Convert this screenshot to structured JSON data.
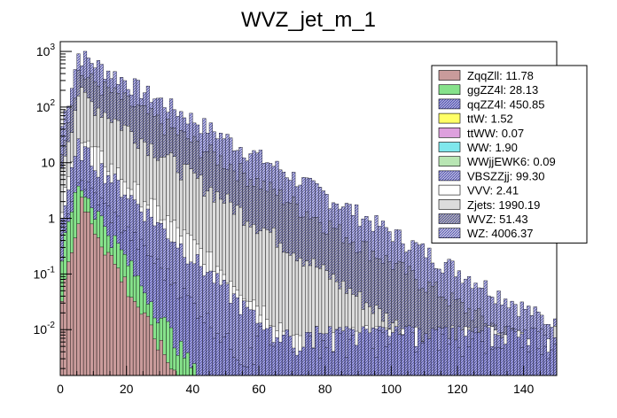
{
  "chart_data": {
    "type": "bar",
    "title": "WVZ_jet_m_1",
    "xlabel": "",
    "ylabel": "",
    "stacked": true,
    "log_y": true,
    "xlim": [
      0,
      150
    ],
    "ylim": [
      0.0015,
      1500
    ],
    "grid": false,
    "legend_position": "top-right",
    "x_ticks": [
      0,
      20,
      40,
      60,
      80,
      100,
      120,
      140
    ],
    "y_ticks": [
      {
        "exp": -2,
        "label": "10",
        "sup": "-2"
      },
      {
        "exp": -1,
        "label": "10",
        "sup": "-1"
      },
      {
        "exp": 0,
        "label": "1",
        "sup": ""
      },
      {
        "exp": 1,
        "label": "10",
        "sup": ""
      },
      {
        "exp": 2,
        "label": "10",
        "sup": "2"
      },
      {
        "exp": 3,
        "label": "10",
        "sup": "3"
      }
    ],
    "bin_width": 1,
    "series": [
      {
        "name": "ZqqZll: 11.78",
        "color": "#c99b9b",
        "hatch": false,
        "peak_bin": 6,
        "peak_value": 1.8,
        "decay_per_bin": 0.78,
        "last_bin": 35,
        "fill_floor": true
      },
      {
        "name": "ggZZ4l: 28.13",
        "color": "#86e28b",
        "hatch": false,
        "peak_bin": 5,
        "peak_value": 4.5,
        "decay_per_bin": 0.8,
        "last_bin": 48,
        "fill_floor": true
      },
      {
        "name": "qqZZ4l: 450.85",
        "color": "#a9a9d6",
        "hatch": true,
        "peak_bin": 5,
        "peak_value": 5.5,
        "decay_per_bin": 0.86,
        "last_bin": 150,
        "fill_floor": false
      },
      {
        "name": "ttW: 1.52",
        "color": "#ffff66",
        "hatch": false,
        "peak_bin": 0,
        "peak_value": 0,
        "decay_per_bin": 0,
        "last_bin": 0,
        "fill_floor": false
      },
      {
        "name": "ttWW: 0.07",
        "color": "#dda0dd",
        "hatch": false,
        "peak_bin": 0,
        "peak_value": 0,
        "decay_per_bin": 0,
        "last_bin": 0,
        "fill_floor": false
      },
      {
        "name": "WW: 1.90",
        "color": "#7fe7ec",
        "hatch": false,
        "peak_bin": 0,
        "peak_value": 0,
        "decay_per_bin": 0,
        "last_bin": 0,
        "fill_floor": false
      },
      {
        "name": "WWjjEWK6: 0.09",
        "color": "#b8e6b3",
        "hatch": false,
        "peak_bin": 0,
        "peak_value": 0,
        "decay_per_bin": 0,
        "last_bin": 0,
        "fill_floor": false
      },
      {
        "name": "VBSZZjj: 99.30",
        "color": "#b5b5d9",
        "hatch": true,
        "peak_bin": 5,
        "peak_value": 20,
        "decay_per_bin": 0.875,
        "last_bin": 150,
        "fill_floor": false
      },
      {
        "name": "VVV: 2.41",
        "color": "#ffffff",
        "hatch": false,
        "peak_bin": 5,
        "peak_value": 30,
        "decay_per_bin": 0.88,
        "last_bin": 150,
        "fill_floor": false
      },
      {
        "name": "Zjets: 1990.19",
        "color": "#dcdcdc",
        "hatch": false,
        "peak_bin": 5,
        "peak_value": 180,
        "decay_per_bin": 0.905,
        "last_bin": 150,
        "fill_floor": false
      },
      {
        "name": "WVZ: 51.43",
        "color": "#b0b0b0",
        "hatch": true,
        "peak_bin": 5,
        "peak_value": 420,
        "decay_per_bin": 0.92,
        "last_bin": 150,
        "fill_floor": false
      },
      {
        "name": "WZ: 4006.37",
        "color": "#c0c0dc",
        "hatch": true,
        "peak_bin": 5,
        "peak_value": 900,
        "decay_per_bin": 0.925,
        "last_bin": 150,
        "fill_floor": false
      }
    ]
  }
}
